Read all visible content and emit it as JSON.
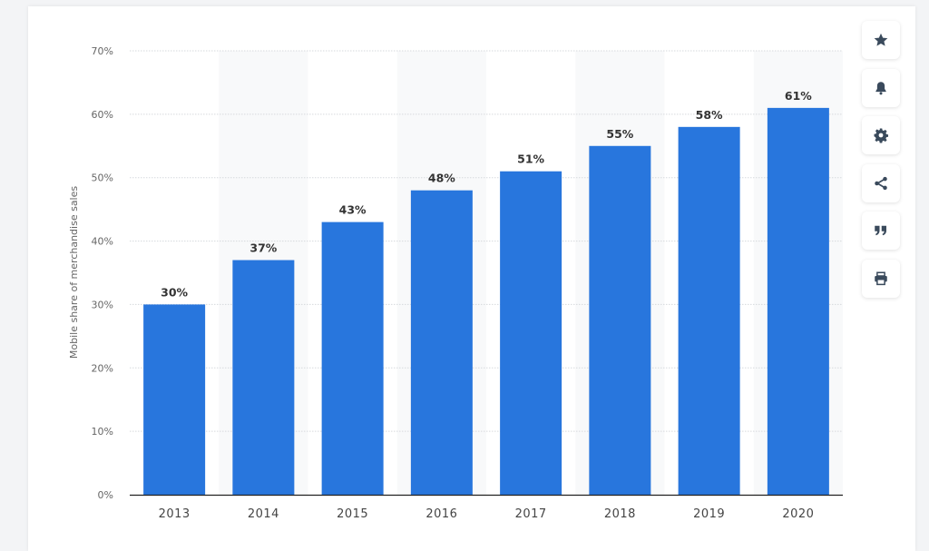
{
  "chart_data": {
    "type": "bar",
    "categories": [
      "2013",
      "2014",
      "2015",
      "2016",
      "2017",
      "2018",
      "2019",
      "2020"
    ],
    "values": [
      30,
      37,
      43,
      48,
      51,
      55,
      58,
      61
    ],
    "data_labels": [
      "30%",
      "37%",
      "43%",
      "48%",
      "51%",
      "55%",
      "58%",
      "61%"
    ],
    "title": "",
    "xlabel": "",
    "ylabel": "Mobile share of merchandise sales",
    "ylim": [
      0,
      70
    ],
    "yticks": [
      "0%",
      "10%",
      "20%",
      "30%",
      "40%",
      "50%",
      "60%",
      "70%"
    ],
    "grid": true,
    "bar_color": "#2876dd",
    "alt_column_shading": true
  },
  "toolbar": {
    "buttons": [
      {
        "icon": "star-icon"
      },
      {
        "icon": "bell-icon"
      },
      {
        "icon": "gear-icon"
      },
      {
        "icon": "share-icon"
      },
      {
        "icon": "quote-icon"
      },
      {
        "icon": "print-icon"
      }
    ],
    "icon_color": "#3a4a5c"
  }
}
